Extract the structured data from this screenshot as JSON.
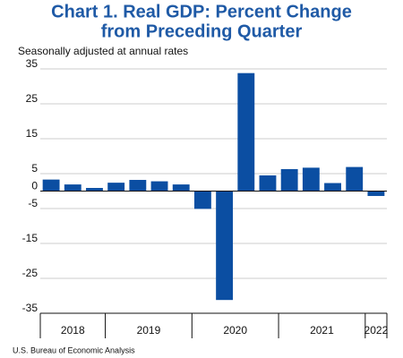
{
  "chart_data": {
    "type": "bar",
    "title": [
      "Chart 1. Real GDP: Percent Change",
      "from Preceding Quarter"
    ],
    "subtitle": "Seasonally adjusted at annual rates",
    "source": "U.S. Bureau of Economic Analysis",
    "categories": [
      null,
      null,
      null,
      null,
      null,
      null,
      null,
      null,
      null,
      null,
      null,
      null,
      null,
      null,
      null,
      null
    ],
    "values": [
      3.3,
      1.9,
      0.9,
      2.4,
      3.2,
      2.8,
      1.9,
      -5.1,
      -31.2,
      33.8,
      4.5,
      6.3,
      6.7,
      2.3,
      6.9,
      -1.4
    ],
    "x_groups": [
      {
        "label": "2018",
        "count": 3
      },
      {
        "label": "2019",
        "count": 4
      },
      {
        "label": "2020",
        "count": 4
      },
      {
        "label": "2021",
        "count": 4
      },
      {
        "label": "2022",
        "count": 1
      }
    ],
    "color": "#0b4ea2",
    "ylim": [
      -35,
      35
    ],
    "yticks": [
      35,
      25,
      15,
      5,
      0,
      -5,
      -15,
      -25,
      -35
    ],
    "grid": true
  }
}
